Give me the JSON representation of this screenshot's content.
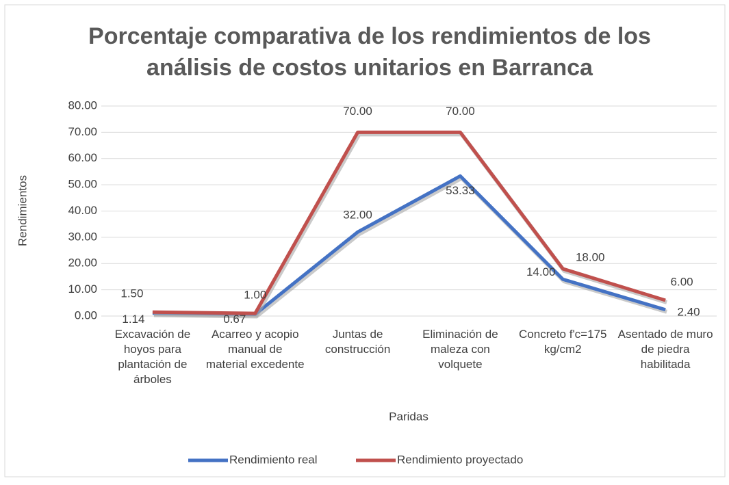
{
  "chart_data": {
    "type": "line",
    "title": "Porcentaje comparativa de los rendimientos de los análisis de costos unitarios en Barranca",
    "x_label": "Paridas",
    "y_label": "Rendimientos",
    "categories": [
      "Excavación de hoyos para plantación de árboles",
      "Acarreo y acopio manual de material excedente",
      "Juntas de construcción",
      "Eliminación de maleza con volquete",
      "Concreto f'c=175 kg/cm2",
      "Asentado de muro de piedra habilitada"
    ],
    "series": [
      {
        "name": "Rendimiento real",
        "color": "#4472c4",
        "values": [
          1.14,
          0.67,
          32,
          53.33,
          14,
          2.4
        ],
        "value_labels": [
          "1.14",
          "0.67",
          "32.00",
          "53.33",
          "14.00",
          "2.40"
        ]
      },
      {
        "name": "Rendimiento proyectado",
        "color": "#c0504d",
        "values": [
          1.5,
          1,
          70,
          70,
          18,
          6
        ],
        "value_labels": [
          "1.50",
          "1.00",
          "70.00",
          "70.00",
          "18.00",
          "6.00"
        ]
      }
    ],
    "ylim": [
      0,
      80
    ],
    "yticks": [
      {
        "value": 0,
        "label": "0.00"
      },
      {
        "value": 10,
        "label": "10.00"
      },
      {
        "value": 20,
        "label": "20.00"
      },
      {
        "value": 30,
        "label": "30.00"
      },
      {
        "value": 40,
        "label": "40.00"
      },
      {
        "value": 50,
        "label": "50.00"
      },
      {
        "value": 60,
        "label": "60.00"
      },
      {
        "value": 70,
        "label": "70.00"
      },
      {
        "value": 80,
        "label": "80.00"
      }
    ],
    "grid": true,
    "legend": "bottom"
  }
}
